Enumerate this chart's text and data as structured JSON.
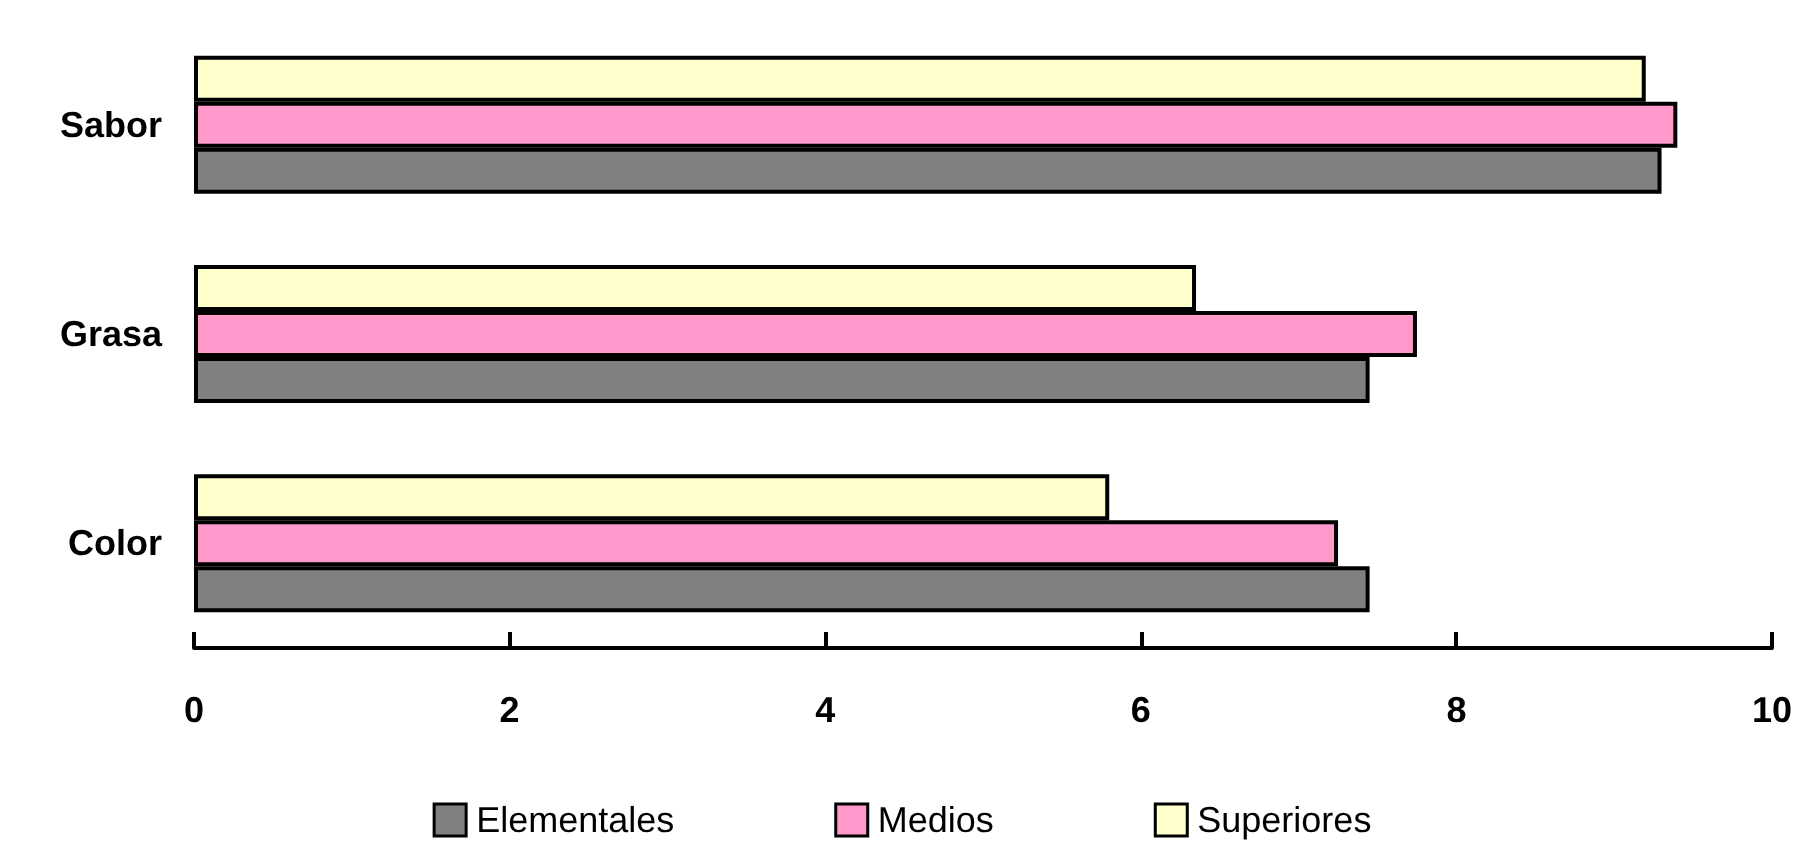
{
  "chart_data": {
    "type": "bar",
    "orientation": "horizontal",
    "categories": [
      "Sabor",
      "Grasa",
      "Color"
    ],
    "series": [
      {
        "name": "Elementales",
        "color": "#808080",
        "values": [
          9.3,
          7.45,
          7.45
        ]
      },
      {
        "name": "Medios",
        "color": "#ff99cc",
        "values": [
          9.4,
          7.75,
          7.25
        ]
      },
      {
        "name": "Superiores",
        "color": "#ffffcc",
        "values": [
          9.2,
          6.35,
          5.8
        ]
      }
    ],
    "xlim": [
      0,
      10
    ],
    "xticks": [
      0,
      2,
      4,
      6,
      8,
      10
    ],
    "grid": false,
    "legend": "bottom"
  }
}
